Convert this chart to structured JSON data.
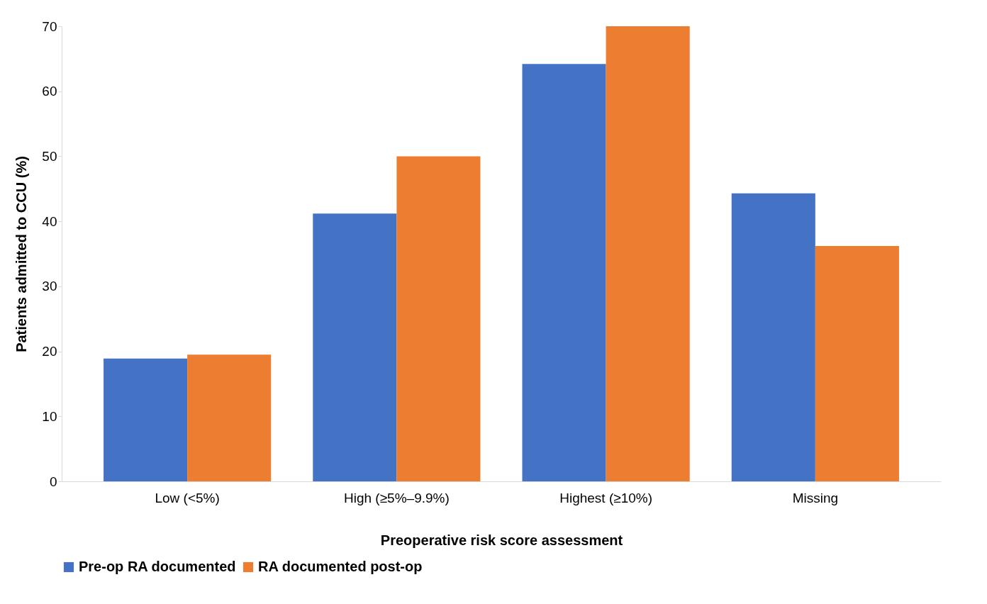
{
  "chart_data": {
    "type": "bar",
    "xlabel": "Preoperative risk score assessment",
    "ylabel": "Patients admitted to CCU (%)",
    "categories": [
      "Low (<5%)",
      "High (≥5%–9.9%)",
      "Highest (≥10%)",
      "Missing"
    ],
    "series": [
      {
        "name": "Pre-op RA documented",
        "color": "#4472c4",
        "values": [
          18.9,
          41.2,
          64.2,
          44.3
        ]
      },
      {
        "name": "RA documented post-op",
        "color": "#ed7d31",
        "values": [
          19.5,
          50.0,
          70.0,
          36.2
        ]
      }
    ],
    "ylim": [
      0,
      70
    ],
    "yticks": [
      0,
      10,
      20,
      30,
      40,
      50,
      60,
      70
    ],
    "grid": false,
    "legend": "bottom"
  }
}
